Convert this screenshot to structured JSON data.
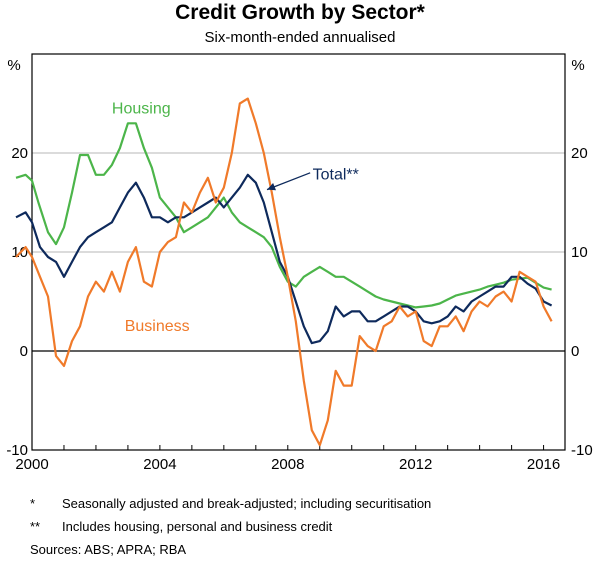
{
  "chart_data": {
    "type": "line",
    "title": "Credit Growth by Sector*",
    "subtitle": "Six-month-ended annualised",
    "ylabel_left": "%",
    "ylabel_right": "%",
    "ylim": [
      -10,
      30
    ],
    "xlim": [
      2000,
      2016.67
    ],
    "y_ticks": [
      -10,
      0,
      10,
      20
    ],
    "y_tick_labels": [
      "-10",
      "0",
      "10",
      "20"
    ],
    "x_ticks": [
      2000,
      2004,
      2008,
      2012,
      2016
    ],
    "x_tick_labels": [
      "2000",
      "2004",
      "2008",
      "2012",
      "2016"
    ],
    "grid": true,
    "series": [
      {
        "name": "Housing",
        "color": "#4cb54a",
        "x": [
          1999.5,
          1999.8,
          2000.0,
          2000.2,
          2000.5,
          2000.75,
          2001.0,
          2001.25,
          2001.5,
          2001.75,
          2002.0,
          2002.25,
          2002.5,
          2002.75,
          2003.0,
          2003.25,
          2003.5,
          2003.75,
          2004.0,
          2004.25,
          2004.5,
          2004.75,
          2005.0,
          2005.25,
          2005.5,
          2005.75,
          2006.0,
          2006.25,
          2006.5,
          2006.75,
          2007.0,
          2007.25,
          2007.5,
          2007.75,
          2008.0,
          2008.25,
          2008.5,
          2008.75,
          2009.0,
          2009.25,
          2009.5,
          2009.75,
          2010.0,
          2010.25,
          2010.5,
          2010.75,
          2011.0,
          2011.25,
          2011.5,
          2011.75,
          2012.0,
          2012.25,
          2012.5,
          2012.75,
          2013.0,
          2013.25,
          2013.5,
          2013.75,
          2014.0,
          2014.25,
          2014.5,
          2014.75,
          2015.0,
          2015.25,
          2015.5,
          2015.75,
          2016.0,
          2016.25
        ],
        "values": [
          17.5,
          17.8,
          17.2,
          15.0,
          12.0,
          10.8,
          12.5,
          16.0,
          19.8,
          19.8,
          17.8,
          17.8,
          18.8,
          20.5,
          23.0,
          23.0,
          20.5,
          18.5,
          15.5,
          14.5,
          13.5,
          12.0,
          12.5,
          13.0,
          13.5,
          14.5,
          15.5,
          14.0,
          13.0,
          12.5,
          12.0,
          11.5,
          10.5,
          8.5,
          7.0,
          6.5,
          7.5,
          8.0,
          8.5,
          8.0,
          7.5,
          7.5,
          7.0,
          6.5,
          6.0,
          5.5,
          5.2,
          5.0,
          4.8,
          4.6,
          4.4,
          4.5,
          4.6,
          4.8,
          5.2,
          5.6,
          5.8,
          6.0,
          6.2,
          6.5,
          6.7,
          6.9,
          7.2,
          7.3,
          7.4,
          6.9,
          6.4,
          6.2
        ]
      },
      {
        "name": "Total**",
        "color": "#0e2a5c",
        "x": [
          1999.5,
          1999.8,
          2000.0,
          2000.25,
          2000.5,
          2000.75,
          2001.0,
          2001.25,
          2001.5,
          2001.75,
          2002.0,
          2002.25,
          2002.5,
          2002.75,
          2003.0,
          2003.25,
          2003.5,
          2003.75,
          2004.0,
          2004.25,
          2004.5,
          2004.75,
          2005.0,
          2005.25,
          2005.5,
          2005.75,
          2006.0,
          2006.25,
          2006.5,
          2006.75,
          2007.0,
          2007.25,
          2007.5,
          2007.75,
          2008.0,
          2008.25,
          2008.5,
          2008.75,
          2009.0,
          2009.25,
          2009.5,
          2009.75,
          2010.0,
          2010.25,
          2010.5,
          2010.75,
          2011.0,
          2011.25,
          2011.5,
          2011.75,
          2012.0,
          2012.25,
          2012.5,
          2012.75,
          2013.0,
          2013.25,
          2013.5,
          2013.75,
          2014.0,
          2014.25,
          2014.5,
          2014.75,
          2015.0,
          2015.25,
          2015.5,
          2015.75,
          2016.0,
          2016.25
        ],
        "values": [
          13.5,
          14.0,
          13.0,
          10.5,
          9.5,
          9.0,
          7.5,
          9.0,
          10.5,
          11.5,
          12.0,
          12.5,
          13.0,
          14.5,
          16.0,
          17.0,
          15.5,
          13.5,
          13.5,
          13.0,
          13.5,
          13.5,
          14.0,
          14.5,
          15.0,
          15.5,
          14.5,
          15.5,
          16.5,
          17.8,
          17.0,
          15.0,
          12.0,
          9.0,
          7.5,
          5.0,
          2.5,
          0.8,
          1.0,
          2.0,
          4.5,
          3.5,
          4.0,
          4.0,
          3.0,
          3.0,
          3.5,
          4.0,
          4.5,
          4.5,
          4.0,
          3.0,
          2.8,
          3.0,
          3.5,
          4.5,
          4.0,
          5.0,
          5.5,
          6.0,
          6.5,
          6.5,
          7.5,
          7.5,
          6.8,
          6.3,
          5.0,
          4.6
        ]
      },
      {
        "name": "Business",
        "color": "#f07a2a",
        "x": [
          1999.5,
          1999.8,
          2000.0,
          2000.25,
          2000.5,
          2000.75,
          2001.0,
          2001.25,
          2001.5,
          2001.75,
          2002.0,
          2002.25,
          2002.5,
          2002.75,
          2003.0,
          2003.25,
          2003.5,
          2003.75,
          2004.0,
          2004.25,
          2004.5,
          2004.75,
          2005.0,
          2005.25,
          2005.5,
          2005.75,
          2006.0,
          2006.25,
          2006.5,
          2006.75,
          2007.0,
          2007.25,
          2007.5,
          2007.75,
          2008.0,
          2008.25,
          2008.5,
          2008.75,
          2009.0,
          2009.25,
          2009.5,
          2009.75,
          2010.0,
          2010.25,
          2010.5,
          2010.75,
          2011.0,
          2011.25,
          2011.5,
          2011.75,
          2012.0,
          2012.25,
          2012.5,
          2012.75,
          2013.0,
          2013.25,
          2013.5,
          2013.75,
          2014.0,
          2014.25,
          2014.5,
          2014.75,
          2015.0,
          2015.25,
          2015.5,
          2015.75,
          2016.0,
          2016.25
        ],
        "values": [
          9.5,
          10.5,
          9.5,
          7.5,
          5.5,
          -0.5,
          -1.5,
          1.0,
          2.5,
          5.5,
          7.0,
          6.0,
          8.0,
          6.0,
          9.0,
          10.5,
          7.0,
          6.5,
          10.0,
          11.0,
          11.5,
          15.0,
          14.0,
          16.0,
          17.5,
          15.0,
          16.5,
          20.0,
          25.0,
          25.5,
          23.0,
          20.0,
          16.0,
          11.5,
          7.5,
          3.0,
          -3.0,
          -8.0,
          -9.5,
          -7.0,
          -2.0,
          -3.5,
          -3.5,
          1.5,
          0.5,
          0.0,
          2.5,
          3.0,
          4.5,
          3.5,
          4.0,
          1.0,
          0.5,
          2.5,
          2.5,
          3.5,
          2.0,
          4.0,
          5.0,
          4.5,
          5.5,
          6.0,
          5.0,
          8.0,
          7.5,
          7.0,
          4.5,
          3.0
        ]
      }
    ],
    "annotations": [
      {
        "text": "Housing",
        "series": "Housing"
      },
      {
        "text": "Total**",
        "series": "Total**",
        "arrow": true
      },
      {
        "text": "Business",
        "series": "Business"
      }
    ]
  },
  "notes": [
    {
      "mark": "*",
      "text": "Seasonally adjusted and break-adjusted; including securitisation"
    },
    {
      "mark": "**",
      "text": "Includes housing, personal and business credit"
    }
  ],
  "sources": "Sources:  ABS; APRA; RBA"
}
